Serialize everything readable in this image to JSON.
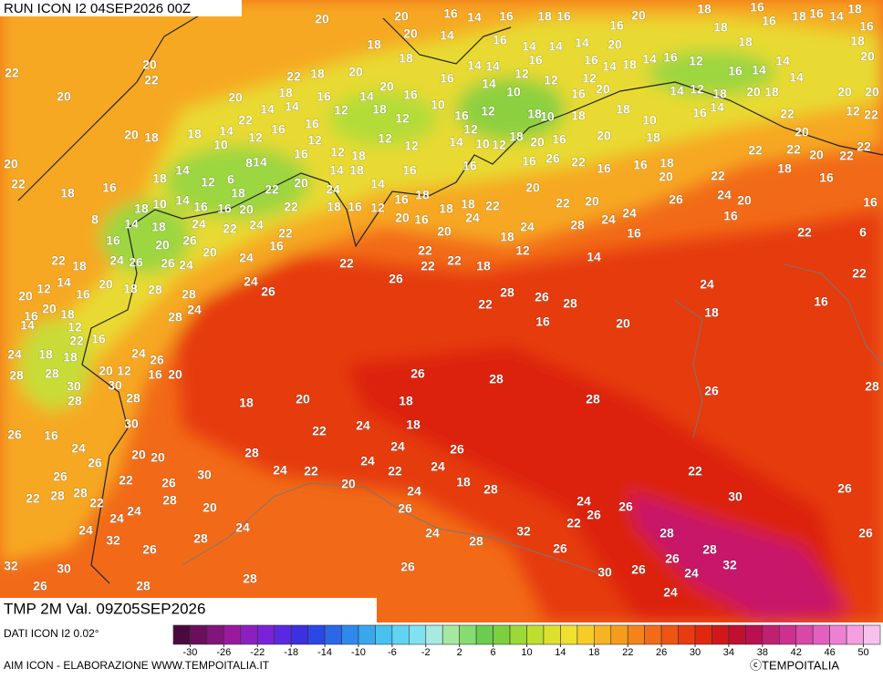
{
  "header": {
    "run": "RUN ICON I2 04SEP2026 00Z",
    "field": "TMP 2M Val. 09Z05SEP2026"
  },
  "footer": {
    "data_source": "DATI ICON I2 0.02°",
    "credit": "AIM ICON - ELABORAZIONE WWW.TEMPOITALIA.IT",
    "brand": "ⓒTEMPOITALIA"
  },
  "colorbar": {
    "range": [
      -32,
      52
    ],
    "ticks": [
      -30,
      -26,
      -22,
      -18,
      -14,
      -10,
      -6,
      -2,
      2,
      6,
      10,
      14,
      18,
      22,
      26,
      30,
      34,
      38,
      42,
      46,
      50
    ],
    "colors": [
      "#4b0a3d",
      "#6a0f5c",
      "#82157a",
      "#9a1a9e",
      "#8e1ec0",
      "#7a22d8",
      "#5a28e0",
      "#3c30e0",
      "#2a48e6",
      "#2a68e8",
      "#3088ec",
      "#3aa6ee",
      "#48c0f0",
      "#60d4f2",
      "#80e2f0",
      "#a6eae0",
      "#a6e8a0",
      "#86dc70",
      "#6ccc50",
      "#7cd040",
      "#9cd838",
      "#bede30",
      "#dee030",
      "#f0e030",
      "#f6cc28",
      "#f6b420",
      "#f69c1c",
      "#f4841a",
      "#f26c18",
      "#ee5414",
      "#e83c10",
      "#e02810",
      "#d01818",
      "#c01030",
      "#b81050",
      "#c02070",
      "#cc3090",
      "#d848a8",
      "#e460c0",
      "#ee80d2",
      "#f4a0e0",
      "#f8c0ec"
    ]
  },
  "map": {
    "labels": [
      20,
      20,
      16,
      14,
      16,
      18,
      16,
      16,
      20,
      18,
      16,
      18,
      16,
      14,
      18,
      16,
      20,
      20,
      14,
      16,
      14,
      14,
      14,
      20,
      18,
      18,
      18,
      16,
      18,
      22,
      20,
      22,
      22,
      18,
      20,
      18,
      16,
      14,
      14,
      12,
      16,
      12,
      16,
      12,
      14,
      18,
      14,
      16,
      12,
      16,
      14,
      14,
      14,
      20,
      20,
      18,
      14,
      14,
      16,
      12,
      14,
      18,
      20,
      16,
      12,
      10,
      16,
      12,
      14,
      10,
      18,
      10,
      16,
      20,
      18,
      10,
      14,
      12,
      18,
      16,
      14,
      20,
      18,
      20,
      20,
      12,
      22,
      20,
      18,
      18,
      22,
      14,
      10,
      12,
      16,
      16,
      12,
      16,
      12,
      18,
      12,
      12,
      14,
      12,
      12,
      18,
      20,
      16,
      18,
      20,
      18,
      22,
      22,
      20,
      22,
      20,
      22,
      22,
      20,
      22,
      18,
      16,
      18,
      14,
      12,
      6,
      8,
      14,
      22,
      20,
      24,
      14,
      18,
      14,
      16,
      16,
      10,
      16,
      26,
      22,
      16,
      16,
      18,
      20,
      22,
      18,
      16,
      18,
      10,
      14,
      16,
      16,
      20,
      18,
      22,
      18,
      16,
      12,
      16,
      18,
      18,
      18,
      22,
      20,
      22,
      20,
      24,
      26,
      24,
      20,
      16,
      16,
      8,
      14,
      18,
      24,
      22,
      24,
      22,
      16,
      20,
      16,
      20,
      24,
      18,
      24,
      28,
      24,
      16,
      22,
      6,
      16,
      20,
      26,
      20,
      24,
      22,
      22,
      22,
      22,
      18,
      12,
      14,
      22,
      18,
      24,
      26,
      26,
      24,
      24,
      26,
      26,
      28,
      26,
      28,
      22,
      24,
      22,
      16,
      20,
      12,
      14,
      16,
      20,
      18,
      28,
      28,
      28,
      24,
      16,
      20,
      18,
      20,
      18,
      16,
      12,
      14,
      22,
      16,
      24,
      18,
      18,
      24,
      26,
      28,
      28,
      20,
      12,
      16,
      20,
      26,
      28,
      30,
      30,
      28,
      28,
      18,
      20,
      18,
      28,
      26,
      28,
      30,
      26,
      16,
      22,
      24,
      18,
      26,
      24,
      24,
      20,
      20,
      26,
      28,
      24,
      24,
      26,
      22,
      26,
      30,
      24,
      22,
      20,
      22,
      18,
      22,
      22,
      28,
      28,
      28,
      22,
      20,
      24,
      28,
      30,
      26,
      24,
      24,
      26,
      24,
      26,
      26,
      22,
      24,
      32,
      28,
      24,
      24,
      32,
      28,
      28,
      26,
      26,
      26,
      28,
      32,
      30,
      26,
      30,
      26,
      26,
      32,
      24,
      28,
      26,
      28,
      24
    ]
  }
}
